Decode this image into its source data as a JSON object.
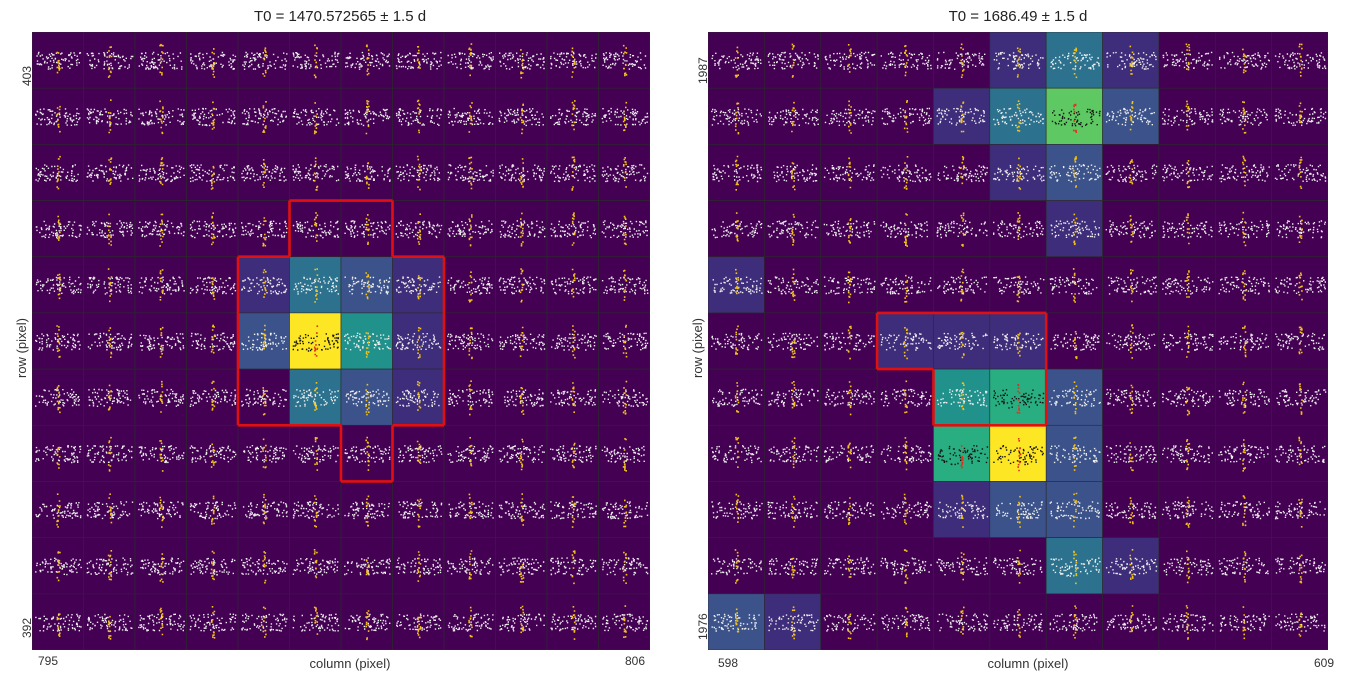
{
  "chart_data": [
    {
      "type": "heatmap",
      "title": "T0 = 1470.572565 ± 1.5 d",
      "xlabel": "column (pixel)",
      "ylabel": "row (pixel)",
      "x_tick_labels": [
        "795",
        "806"
      ],
      "y_tick_labels": [
        "403",
        "392"
      ],
      "xlim": [
        795,
        806
      ],
      "ylim": [
        392,
        403
      ],
      "colors": {
        "0": "#440154",
        "1": "#3e2d7a",
        "2": "#3b528b",
        "3": "#2c728e",
        "4": "#21918c",
        "5": "#28ae80",
        "6": "#5ec962",
        "7": "#fde725"
      },
      "pixel_levels": [
        [
          0,
          0,
          0,
          0,
          0,
          0,
          0,
          0,
          0,
          0,
          0,
          0
        ],
        [
          0,
          0,
          0,
          0,
          0,
          0,
          0,
          0,
          0,
          0,
          0,
          0
        ],
        [
          0,
          0,
          0,
          0,
          0,
          0,
          0,
          0,
          0,
          0,
          0,
          0
        ],
        [
          0,
          0,
          0,
          0,
          0,
          0,
          0,
          0,
          0,
          0,
          0,
          0
        ],
        [
          0,
          0,
          0,
          0,
          1,
          3,
          2,
          1,
          0,
          0,
          0,
          0
        ],
        [
          0,
          0,
          0,
          0,
          2,
          7,
          4,
          1,
          0,
          0,
          0,
          0
        ],
        [
          0,
          0,
          0,
          0,
          0,
          3,
          2,
          1,
          0,
          0,
          0,
          0
        ],
        [
          0,
          0,
          0,
          0,
          0,
          0,
          0,
          0,
          0,
          0,
          0,
          0
        ],
        [
          0,
          0,
          0,
          0,
          0,
          0,
          0,
          0,
          0,
          0,
          0,
          0
        ],
        [
          0,
          0,
          0,
          0,
          0,
          0,
          0,
          0,
          0,
          0,
          0,
          0
        ],
        [
          0,
          0,
          0,
          0,
          0,
          0,
          0,
          0,
          0,
          0,
          0,
          0
        ]
      ],
      "aperture_pixels": [
        [
          3,
          5
        ],
        [
          3,
          6
        ],
        [
          4,
          4
        ],
        [
          4,
          5
        ],
        [
          4,
          6
        ],
        [
          4,
          7
        ],
        [
          5,
          4
        ],
        [
          5,
          5
        ],
        [
          5,
          6
        ],
        [
          5,
          7
        ],
        [
          6,
          4
        ],
        [
          6,
          5
        ],
        [
          6,
          6
        ],
        [
          6,
          7
        ],
        [
          7,
          6
        ]
      ],
      "transit_dip_pixels": [
        [
          5,
          5
        ]
      ]
    },
    {
      "type": "heatmap",
      "title": "T0 = 1686.49 ± 1.5 d",
      "xlabel": "column (pixel)",
      "ylabel": "row (pixel)",
      "x_tick_labels": [
        "598",
        "609"
      ],
      "y_tick_labels": [
        "1987",
        "1976"
      ],
      "xlim": [
        598,
        609
      ],
      "ylim": [
        1976,
        1987
      ],
      "colors": {
        "0": "#440154",
        "1": "#3e2d7a",
        "2": "#3b528b",
        "3": "#2c728e",
        "4": "#21918c",
        "5": "#28ae80",
        "6": "#5ec962",
        "7": "#fde725"
      },
      "pixel_levels": [
        [
          0,
          0,
          0,
          0,
          0,
          1,
          3,
          1,
          0,
          0,
          0
        ],
        [
          0,
          0,
          0,
          0,
          1,
          3,
          6,
          2,
          0,
          0,
          0
        ],
        [
          0,
          0,
          0,
          0,
          0,
          1,
          2,
          0,
          0,
          0,
          0
        ],
        [
          0,
          0,
          0,
          0,
          0,
          0,
          1,
          0,
          0,
          0,
          0
        ],
        [
          1,
          0,
          0,
          0,
          0,
          0,
          0,
          0,
          0,
          0,
          0
        ],
        [
          0,
          0,
          0,
          1,
          1,
          1,
          0,
          0,
          0,
          0,
          0
        ],
        [
          0,
          0,
          0,
          0,
          4,
          5,
          2,
          0,
          0,
          0,
          0
        ],
        [
          0,
          0,
          0,
          0,
          5,
          7,
          2,
          0,
          0,
          0,
          0
        ],
        [
          0,
          0,
          0,
          0,
          1,
          2,
          2,
          0,
          0,
          0,
          0
        ],
        [
          0,
          0,
          0,
          0,
          0,
          0,
          3,
          1,
          0,
          0,
          0
        ],
        [
          2,
          1,
          0,
          0,
          0,
          0,
          0,
          0,
          0,
          0,
          0
        ]
      ],
      "aperture_pixels": [
        [
          5,
          3
        ],
        [
          5,
          4
        ],
        [
          5,
          5
        ],
        [
          6,
          4
        ],
        [
          6,
          5
        ]
      ],
      "transit_dip_pixels": [
        [
          1,
          6
        ],
        [
          6,
          5
        ],
        [
          7,
          4
        ],
        [
          7,
          5
        ],
        [
          9,
          6
        ]
      ]
    }
  ]
}
